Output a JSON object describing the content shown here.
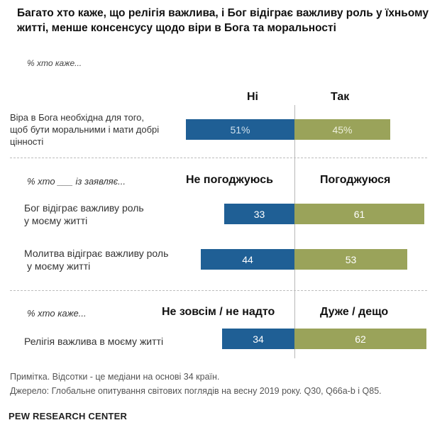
{
  "title": "Багато хто каже, що релігія важлива, і Бог відіграє важливу роль у їхньому житті, менше консенсусу щодо віри в Бога та моральності",
  "subtitle": "% хто каже...",
  "chart_data": {
    "type": "bar",
    "orientation": "horizontal-diverging",
    "series": [
      {
        "name": "negative",
        "color": "#1f5f95"
      },
      {
        "name": "positive",
        "color": "#9aa35a"
      }
    ],
    "sections": [
      {
        "label": "",
        "neg_header": "Ні",
        "pos_header": "Так",
        "rows": [
          {
            "label": "Віра в Бога необхідна для того, щоб бути моральними і мати добрі цінності",
            "neg": 51,
            "pos": 45,
            "neg_text": "51%",
            "pos_text": "45%"
          }
        ]
      },
      {
        "label": "% хто ___ із заявляє...",
        "neg_header": "Не погоджуюсь",
        "pos_header": "Погоджуюся",
        "rows": [
          {
            "label": "Бог відіграє важливу роль у моєму житті",
            "neg": 33,
            "pos": 61,
            "neg_text": "33",
            "pos_text": "61"
          },
          {
            "label": "Молитва відіграє важливу роль у моєму житті",
            "neg": 44,
            "pos": 53,
            "neg_text": "44",
            "pos_text": "53"
          }
        ]
      },
      {
        "label": "% хто каже...",
        "neg_header": "Не зовсім / не надто",
        "pos_header": "Дуже / дещо",
        "rows": [
          {
            "label": "Релігія важлива в моєму житті",
            "neg": 34,
            "pos": 62,
            "neg_text": "34",
            "pos_text": "62"
          }
        ]
      }
    ]
  },
  "labels": {
    "r0": "Віра в Бога необхідна для того,",
    "r0b": "щоб бути моральними і мати добрі",
    "r0c": "цінності",
    "r1a": "Бог відіграє важливу роль",
    "r1b": "у моєму житті",
    "r2a": "Молитва відіграє важливу роль",
    "r2b": "у моєму житті"
  },
  "notes": {
    "note": "Примітка. Відсотки - це медіани на основі 34 країн.",
    "source": "Джерело: Глобальне опитування світових поглядів на весну 2019 року. Q30, Q66a-b і Q85."
  },
  "brand": "PEW RESEARCH CENTER"
}
